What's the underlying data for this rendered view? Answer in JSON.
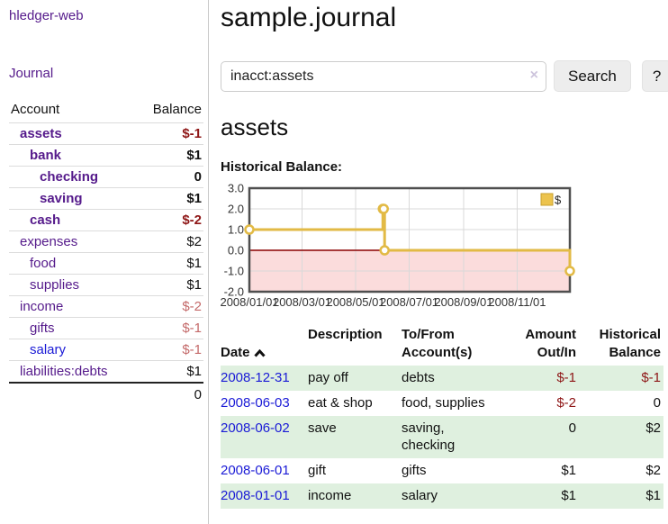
{
  "app": {
    "brand": "hledger-web"
  },
  "colors": {
    "link_purple": "#551a8b",
    "link_blue": "#1a1ad6",
    "negative_strong": "#8e1616",
    "negative_muted": "#c46a6a",
    "row_stripe_green": "#dff0df",
    "button_bg": "#ededed"
  },
  "sidebar": {
    "journal_label": "Journal",
    "accounts": {
      "header": {
        "account": "Account",
        "balance": "Balance"
      },
      "rows": [
        {
          "name": "assets",
          "depth": 1,
          "bold": true,
          "balance": "$-1",
          "style": "neg-strong",
          "link": "visited"
        },
        {
          "name": "bank",
          "depth": 2,
          "bold": true,
          "balance": "$1",
          "style": "plain",
          "link": "visited"
        },
        {
          "name": "checking",
          "depth": 3,
          "bold": true,
          "balance": "0",
          "style": "plain",
          "link": "visited"
        },
        {
          "name": "saving",
          "depth": 3,
          "bold": true,
          "balance": "$1",
          "style": "plain",
          "link": "visited"
        },
        {
          "name": "cash",
          "depth": 2,
          "bold": true,
          "balance": "$-2",
          "style": "neg-strong",
          "link": "visited"
        },
        {
          "name": "expenses",
          "depth": 1,
          "bold": false,
          "balance": "$2",
          "style": "plain",
          "link": "visited"
        },
        {
          "name": "food",
          "depth": 2,
          "bold": false,
          "balance": "$1",
          "style": "plain",
          "link": "visited"
        },
        {
          "name": "supplies",
          "depth": 2,
          "bold": false,
          "balance": "$1",
          "style": "plain",
          "link": "visited"
        },
        {
          "name": "income",
          "depth": 1,
          "bold": false,
          "balance": "$-2",
          "style": "neg-muted",
          "link": "visited"
        },
        {
          "name": "gifts",
          "depth": 2,
          "bold": false,
          "balance": "$-1",
          "style": "neg-muted",
          "link": "visited"
        },
        {
          "name": "salary",
          "depth": 2,
          "bold": false,
          "balance": "$-1",
          "style": "neg-muted",
          "link": "unvisited"
        },
        {
          "name": "liabilities:debts",
          "depth": 1,
          "bold": false,
          "balance": "$1",
          "style": "plain",
          "link": "visited"
        }
      ],
      "total": "0"
    }
  },
  "main": {
    "title": "sample.journal",
    "search": {
      "query": "inacct:assets",
      "clear": "×",
      "submit": "Search",
      "help": "?"
    },
    "heading": "assets",
    "chart_title": "Historical Balance:"
  },
  "chart_data": {
    "type": "line",
    "title": "Historical Balance",
    "step": "after",
    "legend": [
      {
        "label": "$"
      }
    ],
    "legend_position": "top-right",
    "grid": true,
    "x_start": "2008-01-01",
    "x_end": "2008-12-31",
    "ylim": [
      -2,
      3
    ],
    "x_ticks": [
      {
        "label": "2008/01/01",
        "date": "2008-01-01"
      },
      {
        "label": "2008/03/01",
        "date": "2008-03-01"
      },
      {
        "label": "2008/05/01",
        "date": "2008-05-01"
      },
      {
        "label": "2008/07/01",
        "date": "2008-07-01"
      },
      {
        "label": "2008/09/01",
        "date": "2008-09-01"
      },
      {
        "label": "2008/11/01",
        "date": "2008-11-01"
      }
    ],
    "y_ticks": [
      {
        "label": "3.0",
        "value": 3
      },
      {
        "label": "2.0",
        "value": 2
      },
      {
        "label": "1.0",
        "value": 1
      },
      {
        "label": "0.0",
        "value": 0
      },
      {
        "label": "-1.0",
        "value": -1
      },
      {
        "label": "-2.0",
        "value": -2
      }
    ],
    "points": [
      {
        "date": "2008-01-01",
        "value": 1
      },
      {
        "date": "2008-06-01",
        "value": 2
      },
      {
        "date": "2008-06-02",
        "value": 2
      },
      {
        "date": "2008-06-03",
        "value": 0
      },
      {
        "date": "2008-12-31",
        "value": -1
      }
    ],
    "colors": {
      "line": "#e2ba45",
      "marker_fill": "#ffffff",
      "negative_fill": "#fbdcdc",
      "zero_line": "#8b0000",
      "grid": "#d9d9d9",
      "border": "#4f4f4f",
      "legend_fill": "#ecc34d",
      "legend_border": "#c9a02e",
      "tick_text": "#333333"
    }
  },
  "register": {
    "headers": {
      "date": "Date",
      "description": "Description",
      "accounts": "To/From\nAccount(s)",
      "amount": "Amount\nOut/In",
      "balance": "Historical\nBalance"
    },
    "rows": [
      {
        "date": "2008-12-31",
        "description": "pay off",
        "accounts": "debts",
        "amount": "$-1",
        "amount_neg": true,
        "balance": "$-1",
        "balance_neg": true
      },
      {
        "date": "2008-06-03",
        "description": "eat & shop",
        "accounts": "food, supplies",
        "amount": "$-2",
        "amount_neg": true,
        "balance": "0",
        "balance_neg": false
      },
      {
        "date": "2008-06-02",
        "description": "save",
        "accounts": "saving, checking",
        "amount": "0",
        "amount_neg": false,
        "balance": "$2",
        "balance_neg": false
      },
      {
        "date": "2008-06-01",
        "description": "gift",
        "accounts": "gifts",
        "amount": "$1",
        "amount_neg": false,
        "balance": "$2",
        "balance_neg": false
      },
      {
        "date": "2008-01-01",
        "description": "income",
        "accounts": "salary",
        "amount": "$1",
        "amount_neg": false,
        "balance": "$1",
        "balance_neg": false
      }
    ]
  }
}
